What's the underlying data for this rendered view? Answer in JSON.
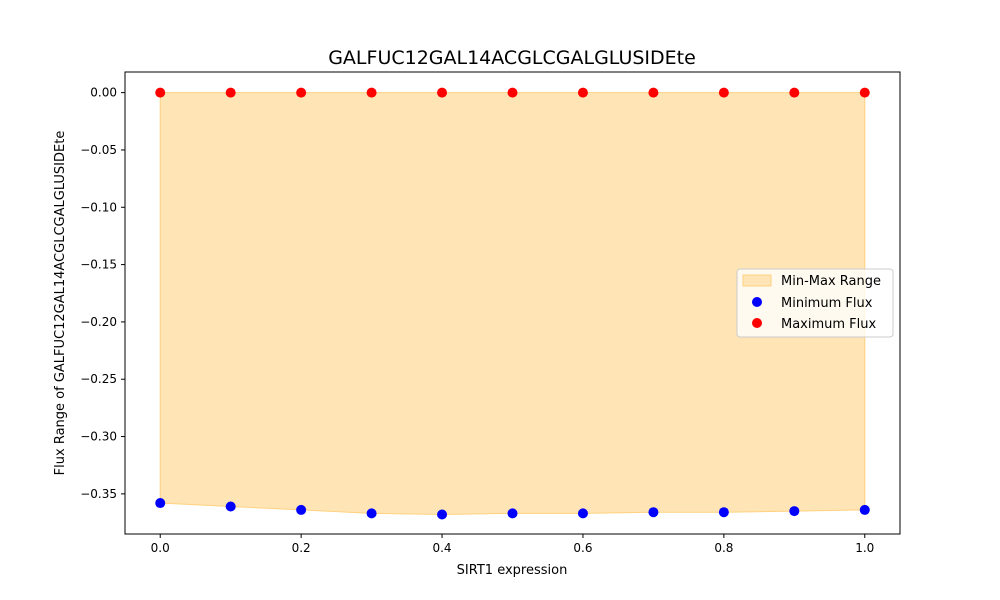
{
  "chart_data": {
    "type": "scatter",
    "title": "GALFUC12GAL14ACGLCGALGLUSIDEte",
    "xlabel": "SIRT1 expression",
    "ylabel": "Flux Range of GALFUC12GAL14ACGLCGALGLUSIDEte",
    "x": [
      0.0,
      0.1,
      0.2,
      0.3,
      0.4,
      0.5,
      0.6,
      0.7,
      0.8,
      0.9,
      1.0
    ],
    "xlim": [
      -0.05,
      1.05
    ],
    "ylim": [
      -0.385,
      0.018
    ],
    "xticks": [
      0.0,
      0.2,
      0.4,
      0.6,
      0.8,
      1.0
    ],
    "xtick_labels": [
      "0.0",
      "0.2",
      "0.4",
      "0.6",
      "0.8",
      "1.0"
    ],
    "yticks": [
      0.0,
      -0.05,
      -0.1,
      -0.15,
      -0.2,
      -0.25,
      -0.3,
      -0.35
    ],
    "ytick_labels": [
      "0.00",
      "−0.05",
      "−0.10",
      "−0.15",
      "−0.20",
      "−0.25",
      "−0.30",
      "−0.35"
    ],
    "grid": false,
    "legend_position": "center-right",
    "fill": {
      "name": "Min-Max Range",
      "color": "#FFE4B5",
      "edge_color": "#FFD27F"
    },
    "series": [
      {
        "name": "Minimum Flux",
        "color": "#0000FF",
        "values": [
          -0.358,
          -0.361,
          -0.364,
          -0.367,
          -0.368,
          -0.367,
          -0.367,
          -0.366,
          -0.366,
          -0.365,
          -0.364
        ]
      },
      {
        "name": "Maximum Flux",
        "color": "#FF0000",
        "values": [
          0.0,
          0.0,
          0.0,
          0.0,
          0.0,
          0.0,
          0.0,
          0.0,
          0.0,
          0.0,
          0.0
        ]
      }
    ]
  }
}
